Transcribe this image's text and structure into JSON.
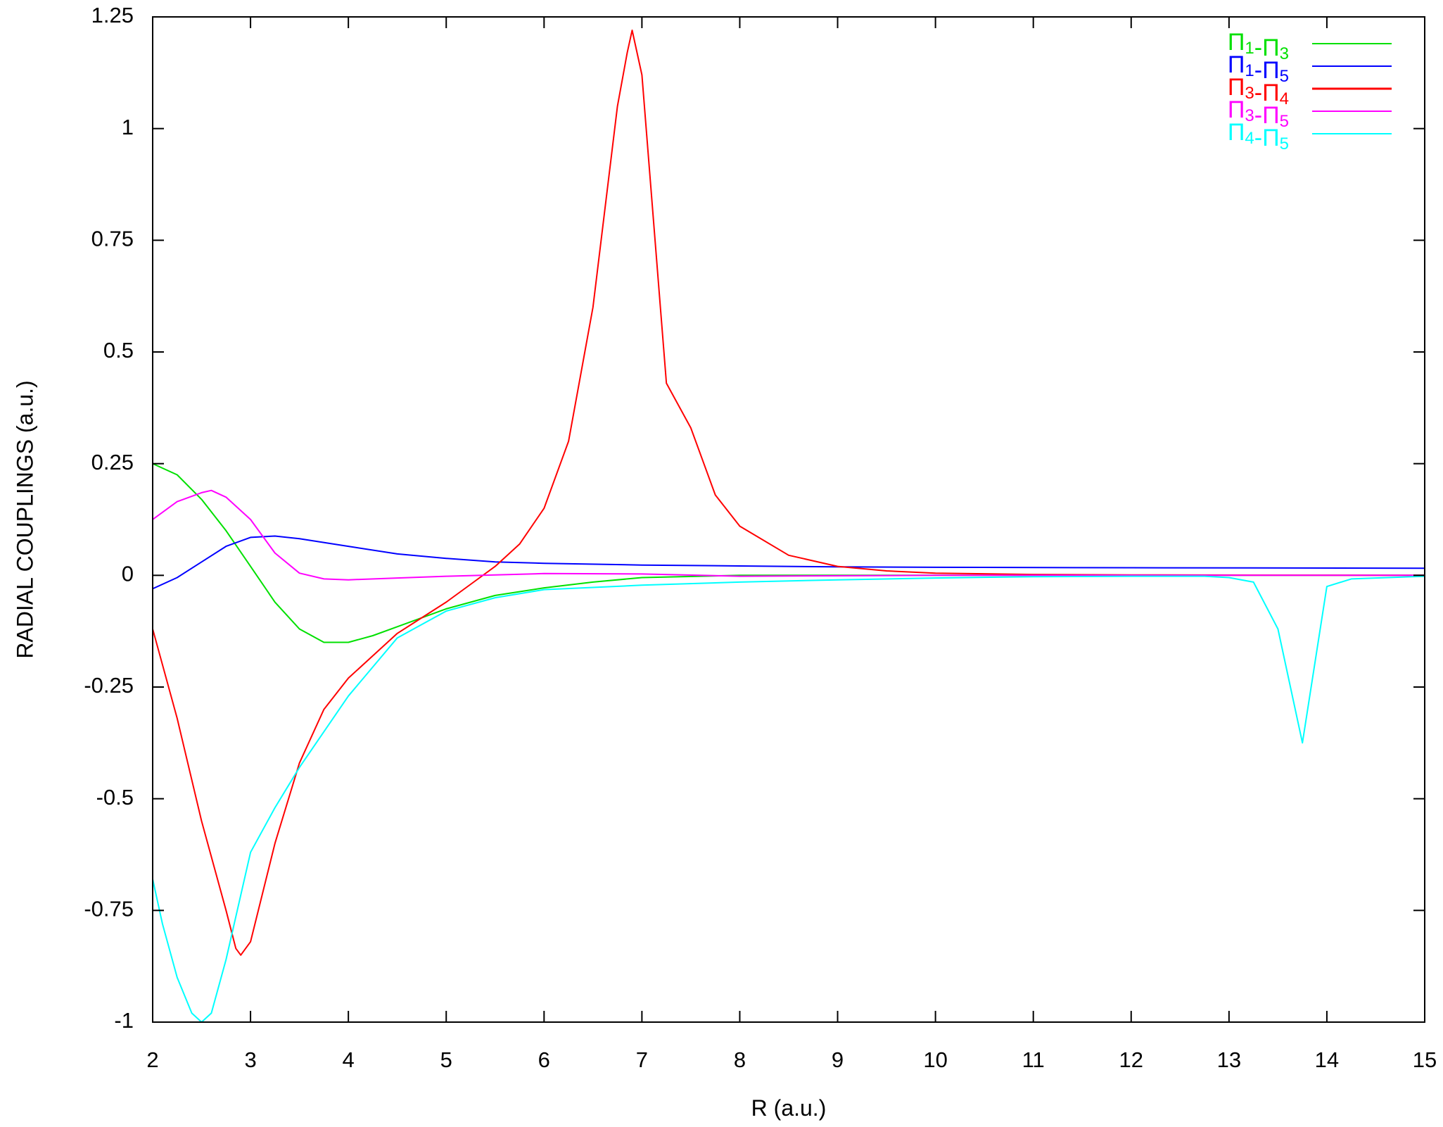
{
  "chart_data": {
    "type": "line",
    "title": "",
    "xlabel": "R (a.u.)",
    "ylabel": "RADIAL COUPLINGS (a.u.)",
    "xlim": [
      2,
      15
    ],
    "ylim": [
      -1,
      1.25
    ],
    "xticks": [
      2,
      3,
      4,
      5,
      6,
      7,
      8,
      9,
      10,
      11,
      12,
      13,
      14,
      15
    ],
    "yticks": [
      -1,
      -0.75,
      -0.5,
      -0.25,
      0,
      0.25,
      0.5,
      0.75,
      1,
      1.25
    ],
    "xtick_labels": [
      "2",
      "3",
      "4",
      "5",
      "6",
      "7",
      "8",
      "9",
      "10",
      "11",
      "12",
      "13",
      "14",
      "15"
    ],
    "ytick_labels": [
      "-1",
      "-0.75",
      "-0.5",
      "-0.25",
      "0",
      "0.25",
      "0.5",
      "0.75",
      "1",
      "1.25"
    ],
    "grid": false,
    "legend_position": "top-right",
    "series": [
      {
        "name": "Π1-Π3",
        "label_parts": [
          [
            "Π",
            "1"
          ],
          [
            "Π",
            "3"
          ]
        ],
        "color": "#00e000",
        "x": [
          2,
          2.25,
          2.5,
          2.75,
          3,
          3.25,
          3.5,
          3.75,
          4,
          4.25,
          4.5,
          5,
          5.5,
          6,
          6.5,
          7,
          8,
          9,
          10,
          12,
          15
        ],
        "y": [
          0.25,
          0.225,
          0.17,
          0.1,
          0.02,
          -0.06,
          -0.12,
          -0.15,
          -0.15,
          -0.135,
          -0.115,
          -0.075,
          -0.045,
          -0.028,
          -0.015,
          -0.005,
          0.0,
          0.0,
          0.0,
          0.0,
          0.0
        ]
      },
      {
        "name": "Π1-Π5",
        "label_parts": [
          [
            "Π",
            "1"
          ],
          [
            "Π",
            "5"
          ]
        ],
        "color": "#0000ff",
        "x": [
          2,
          2.25,
          2.5,
          2.75,
          3,
          3.25,
          3.5,
          4,
          4.5,
          5,
          5.5,
          6,
          7,
          8,
          9,
          10,
          12,
          15
        ],
        "y": [
          -0.03,
          -0.005,
          0.03,
          0.065,
          0.085,
          0.088,
          0.082,
          0.065,
          0.048,
          0.038,
          0.03,
          0.027,
          0.023,
          0.021,
          0.019,
          0.018,
          0.017,
          0.016
        ]
      },
      {
        "name": "Π3-Π4",
        "label_parts": [
          [
            "Π",
            "3"
          ],
          [
            "Π",
            "4"
          ]
        ],
        "color": "#ff0000",
        "x": [
          2,
          2.25,
          2.5,
          2.75,
          2.85,
          2.9,
          3.0,
          3.25,
          3.5,
          3.75,
          4,
          4.5,
          5,
          5.25,
          5.5,
          5.75,
          6,
          6.25,
          6.5,
          6.75,
          6.85,
          6.9,
          7.0,
          7.25,
          7.5,
          7.75,
          8,
          8.5,
          9,
          9.5,
          10,
          11,
          12,
          15
        ],
        "y": [
          -0.12,
          -0.32,
          -0.55,
          -0.75,
          -0.835,
          -0.85,
          -0.82,
          -0.6,
          -0.42,
          -0.3,
          -0.23,
          -0.13,
          -0.06,
          -0.02,
          0.02,
          0.07,
          0.15,
          0.3,
          0.6,
          1.05,
          1.17,
          1.22,
          1.12,
          0.43,
          0.33,
          0.18,
          0.11,
          0.045,
          0.02,
          0.01,
          0.005,
          0.002,
          0.001,
          0.0
        ]
      },
      {
        "name": "Π3-Π5",
        "label_parts": [
          [
            "Π",
            "3"
          ],
          [
            "Π",
            "5"
          ]
        ],
        "color": "#ff00ff",
        "x": [
          2,
          2.25,
          2.5,
          2.6,
          2.75,
          3,
          3.25,
          3.5,
          3.75,
          4,
          4.5,
          5,
          6,
          7,
          8,
          10,
          12,
          15
        ],
        "y": [
          0.125,
          0.165,
          0.185,
          0.19,
          0.175,
          0.125,
          0.05,
          0.005,
          -0.008,
          -0.01,
          -0.006,
          -0.002,
          0.004,
          0.003,
          -0.002,
          0.0,
          0.0,
          0.0
        ]
      },
      {
        "name": "Π4-Π5",
        "label_parts": [
          [
            "Π",
            "4"
          ],
          [
            "Π",
            "5"
          ]
        ],
        "color": "#00ffff",
        "x": [
          2,
          2.1,
          2.25,
          2.4,
          2.5,
          2.6,
          2.75,
          3,
          3.25,
          3.5,
          4,
          4.5,
          5,
          5.5,
          6,
          7,
          8,
          9,
          10,
          11,
          12,
          12.75,
          13,
          13.25,
          13.5,
          13.75,
          14,
          14.25,
          15
        ],
        "y": [
          -0.68,
          -0.78,
          -0.9,
          -0.98,
          -1.0,
          -0.98,
          -0.86,
          -0.62,
          -0.52,
          -0.43,
          -0.27,
          -0.14,
          -0.08,
          -0.05,
          -0.032,
          -0.022,
          -0.015,
          -0.01,
          -0.006,
          -0.003,
          -0.002,
          -0.002,
          -0.005,
          -0.015,
          -0.12,
          -0.375,
          -0.025,
          -0.008,
          -0.002
        ]
      }
    ]
  }
}
